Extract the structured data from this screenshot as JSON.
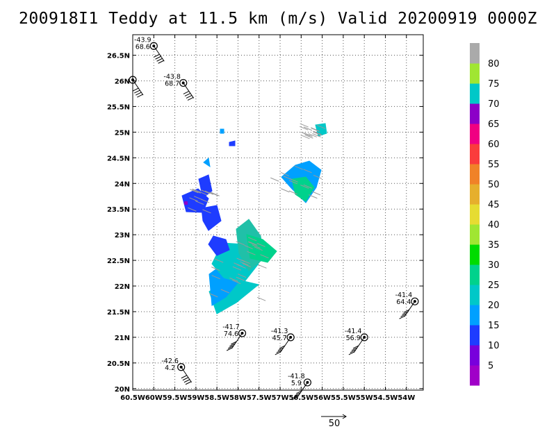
{
  "title": "200918I1 Teddy at 11.5 km (m/s) Valid 20200919 0000Z",
  "chart_data": {
    "type": "scatter",
    "title": "200918I1 Teddy at 11.5 km (m/s) Valid 20200919 0000Z",
    "xlim": [
      -60.5,
      -53.6
    ],
    "ylim": [
      19.97,
      26.9
    ],
    "x_ticks": [
      {
        "value": -60.5,
        "label": "60.5W"
      },
      {
        "value": -60,
        "label": "60W"
      },
      {
        "value": -59.5,
        "label": "59.5W"
      },
      {
        "value": -59,
        "label": "59W"
      },
      {
        "value": -58.5,
        "label": "58.5W"
      },
      {
        "value": -58,
        "label": "58W"
      },
      {
        "value": -57.5,
        "label": "57.5W"
      },
      {
        "value": -57,
        "label": "57W"
      },
      {
        "value": -56.5,
        "label": "56.5W"
      },
      {
        "value": -56,
        "label": "56W"
      },
      {
        "value": -55.5,
        "label": "55.5W"
      },
      {
        "value": -55,
        "label": "55W"
      },
      {
        "value": -54.5,
        "label": "54.5W"
      },
      {
        "value": -54,
        "label": "54W"
      }
    ],
    "y_ticks": [
      {
        "value": 20,
        "label": "20N"
      },
      {
        "value": 20.5,
        "label": "20.5N"
      },
      {
        "value": 21,
        "label": "21N"
      },
      {
        "value": 21.5,
        "label": "21.5N"
      },
      {
        "value": 22,
        "label": "22N"
      },
      {
        "value": 22.5,
        "label": "22.5N"
      },
      {
        "value": 23,
        "label": "23N"
      },
      {
        "value": 23.5,
        "label": "23.5N"
      },
      {
        "value": 24,
        "label": "24N"
      },
      {
        "value": 24.5,
        "label": "24.5N"
      },
      {
        "value": 25,
        "label": "25N"
      },
      {
        "value": 25.5,
        "label": "25.5N"
      },
      {
        "value": 26,
        "label": "26N"
      },
      {
        "value": 26.5,
        "label": "26.5N"
      }
    ],
    "grid": true,
    "grid_style": "dotted",
    "colorbar": {
      "levels": [
        "5",
        "10",
        "15",
        "20",
        "25",
        "30",
        "35",
        "40",
        "45",
        "50",
        "55",
        "60",
        "65",
        "70",
        "75",
        "80"
      ],
      "colors": [
        "#a000c8",
        "#7800dc",
        "#1e3cff",
        "#00a0ff",
        "#00c8c8",
        "#00d28c",
        "#00dc00",
        "#a0e632",
        "#e6dc32",
        "#e6af2d",
        "#f08228",
        "#fa3c3c",
        "#f00082",
        "#8c00c8",
        "#00c8c8",
        "#a0e632",
        "#aaaaaa"
      ]
    },
    "stations": [
      {
        "lon": -60.0,
        "lat": 26.68,
        "t": "-43.9",
        "rh": "68.6"
      },
      {
        "lon": -60.5,
        "lat": 26.02,
        "t": "",
        "rh": ""
      },
      {
        "lon": -59.3,
        "lat": 25.96,
        "t": "-43.8",
        "rh": "68.7"
      },
      {
        "lon": -57.9,
        "lat": 21.08,
        "t": "-41.7",
        "rh": "74.6"
      },
      {
        "lon": -56.75,
        "lat": 21.0,
        "t": "-41.3",
        "rh": "45.7"
      },
      {
        "lon": -55.0,
        "lat": 21.0,
        "t": "-41.4",
        "rh": "56.9"
      },
      {
        "lon": -53.8,
        "lat": 21.7,
        "t": "-41.4",
        "rh": "64.4"
      },
      {
        "lon": -59.35,
        "lat": 20.42,
        "t": "-42.6",
        "rh": "4.2"
      },
      {
        "lon": -56.35,
        "lat": 20.12,
        "t": "-41.8",
        "rh": "5.9"
      }
    ],
    "reference_vector": {
      "value": "50"
    }
  }
}
